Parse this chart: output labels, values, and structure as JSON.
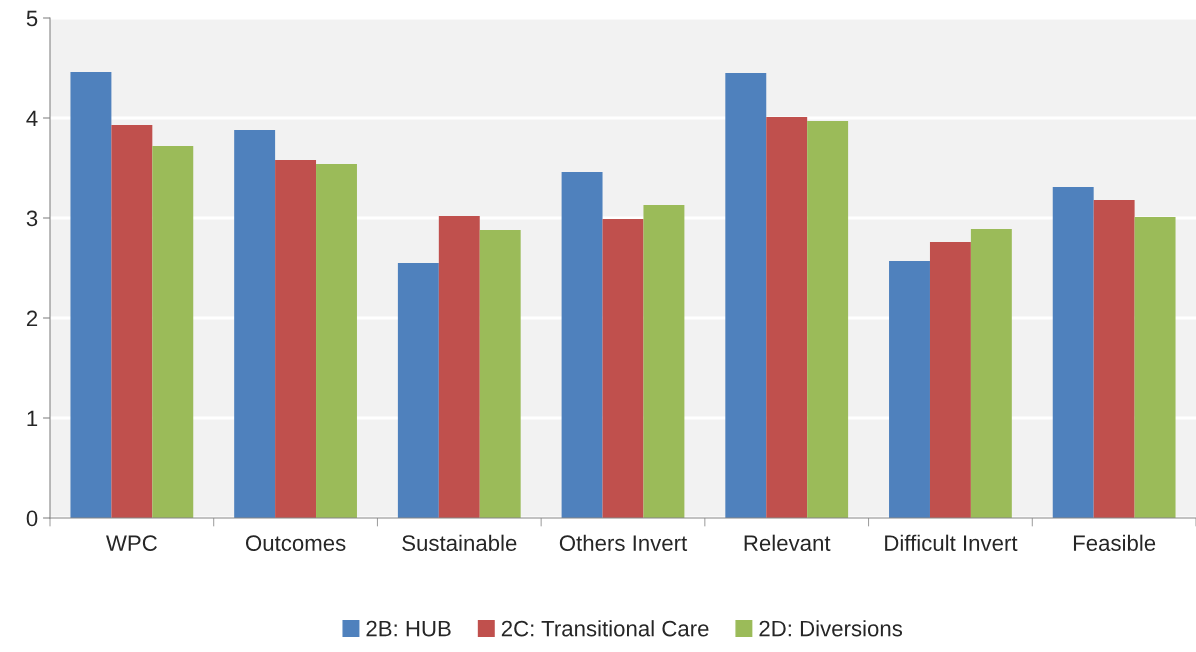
{
  "chart_data": {
    "type": "bar",
    "categories": [
      "WPC",
      "Outcomes",
      "Sustainable",
      "Others Invert",
      "Relevant",
      "Difficult Invert",
      "Feasible"
    ],
    "series": [
      {
        "name": "2B: HUB",
        "color": "#4f81bd",
        "values": [
          4.46,
          3.88,
          2.55,
          3.46,
          4.45,
          2.57,
          3.31
        ]
      },
      {
        "name": "2C: Transitional Care",
        "color": "#c0504d",
        "values": [
          3.93,
          3.58,
          3.02,
          2.99,
          4.01,
          2.76,
          3.18
        ]
      },
      {
        "name": "2D: Diversions",
        "color": "#9bbb59",
        "values": [
          3.72,
          3.54,
          2.88,
          3.13,
          3.97,
          2.89,
          3.01
        ]
      }
    ],
    "ylim": [
      0,
      5
    ],
    "yticks": [
      0,
      1,
      2,
      3,
      4,
      5
    ],
    "grid": "y",
    "legend": "bottom"
  }
}
